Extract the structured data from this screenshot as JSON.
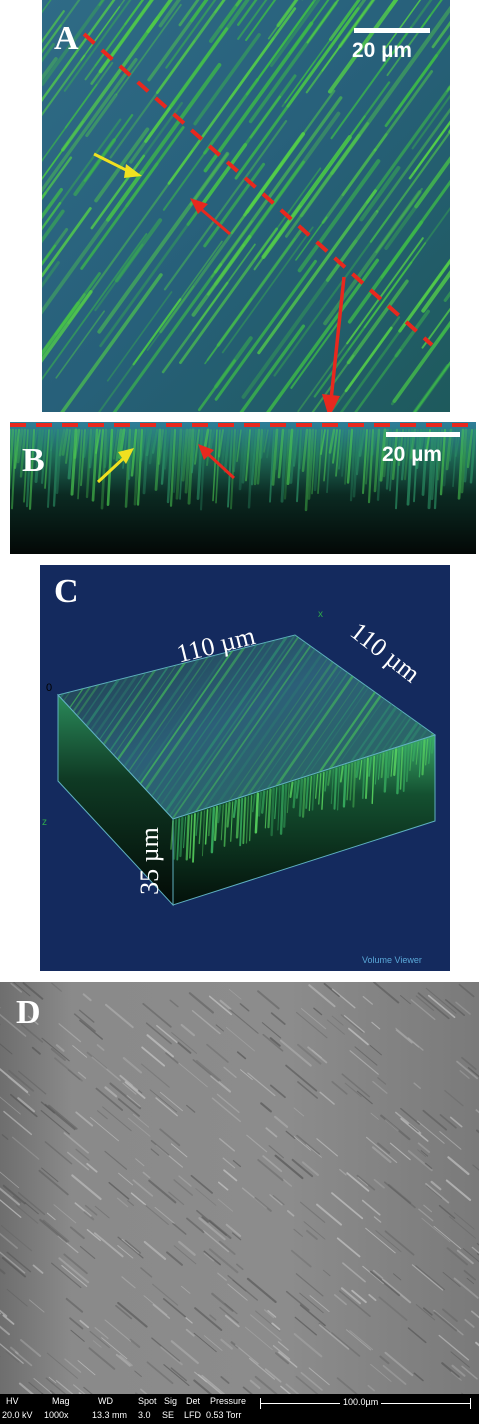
{
  "panels": {
    "a": {
      "label": "A",
      "scale": "20 µm"
    },
    "b": {
      "label": "B",
      "scale": "20 µm"
    },
    "c": {
      "label": "C",
      "width_dim": "110 µm",
      "depth_dim": "110 µm",
      "height_dim": "35 µm",
      "axis_x": "x",
      "axis_z": "z",
      "origin": "0",
      "viewer_caption": "Volume Viewer"
    },
    "d": {
      "label": "D",
      "footer": {
        "headers": [
          "HV",
          "Mag",
          "WD",
          "Spot",
          "Sig",
          "Det",
          "Pressure"
        ],
        "values": [
          "20.0 kV",
          "1000x",
          "13.3 mm",
          "3.0",
          "SE",
          "LFD",
          "0.53 Torr"
        ],
        "scale": "100.0µm"
      }
    }
  },
  "colors": {
    "arrow_red": "#e8281e",
    "arrow_yellow": "#f0e020",
    "fiber_green": "#3ec83e",
    "field_blue": "#2e6e8c",
    "volume_bg": "#142a5e"
  }
}
